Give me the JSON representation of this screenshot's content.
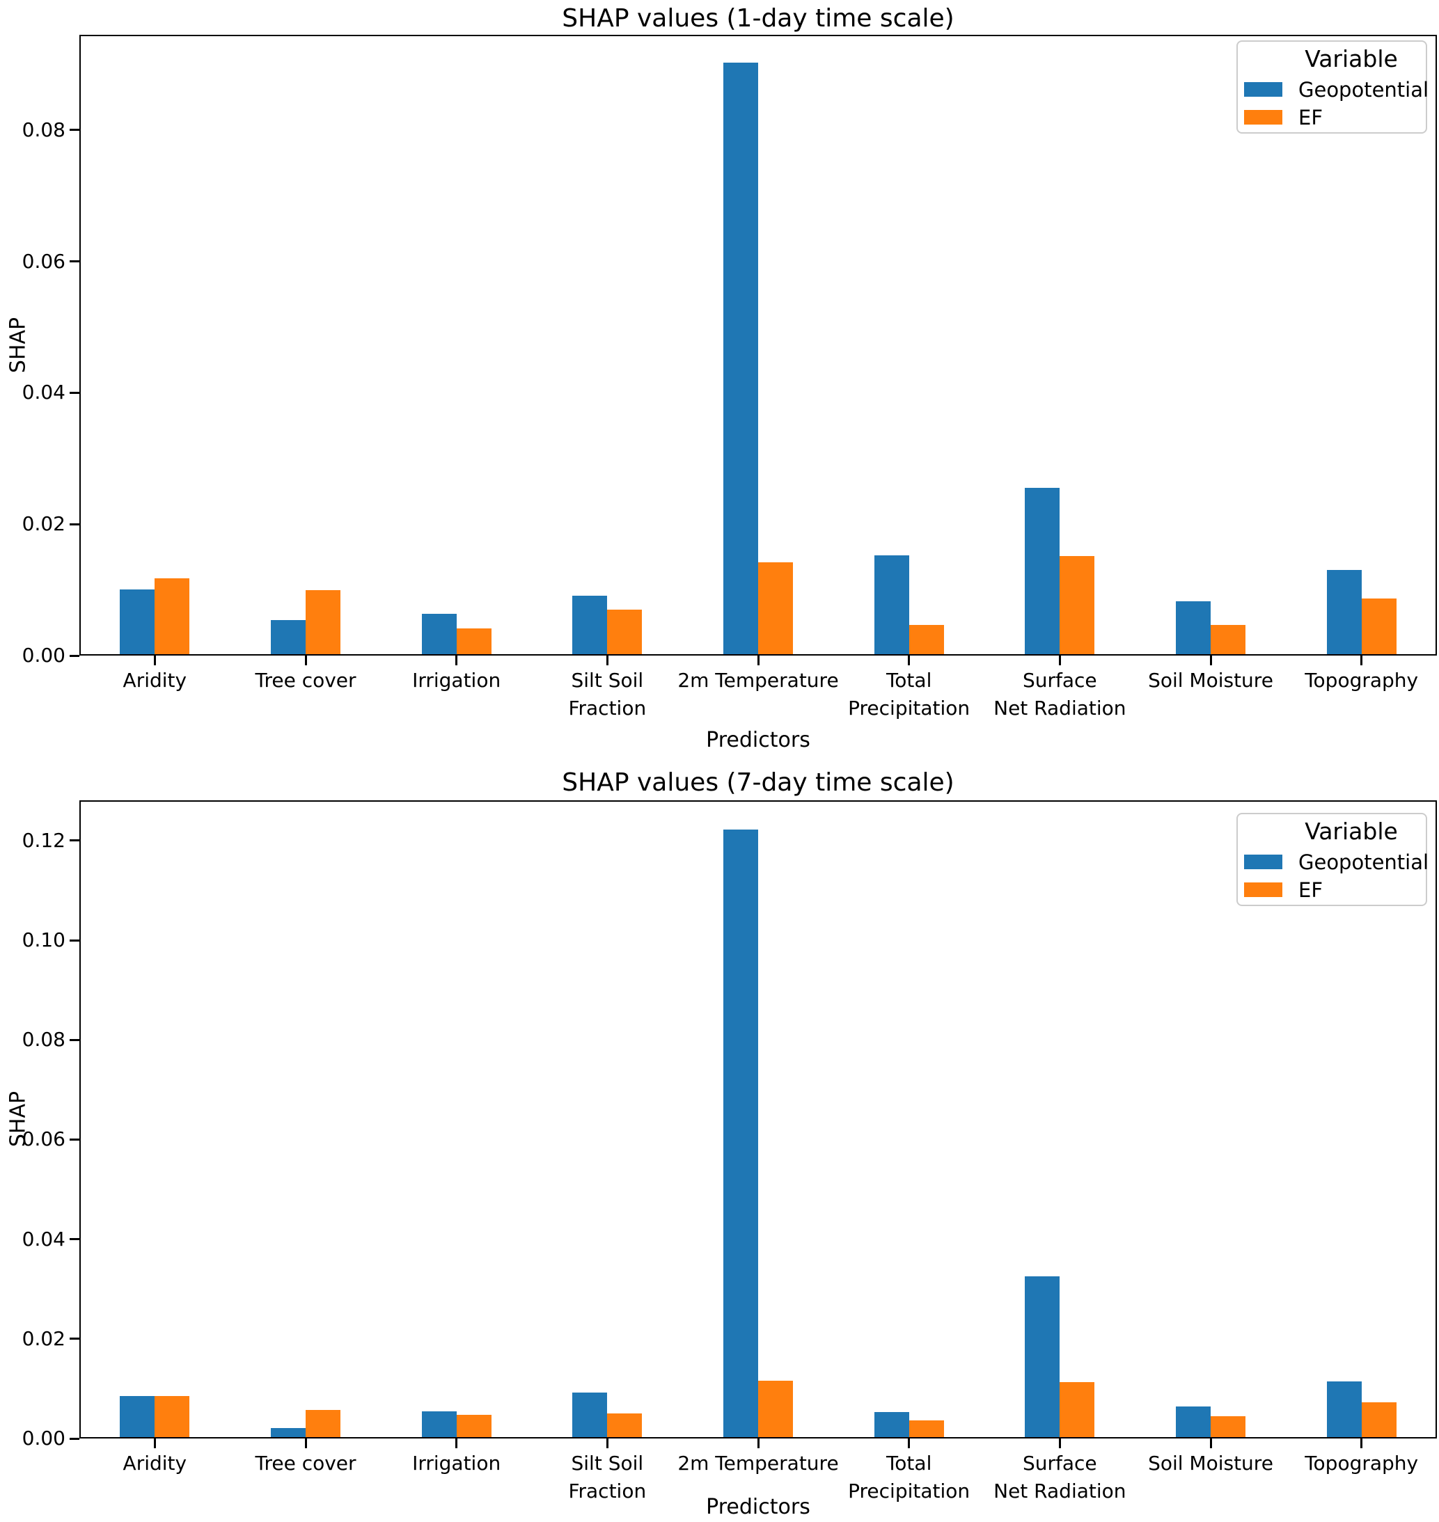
{
  "figure": {
    "background": "#ffffff",
    "text_color": "#000000",
    "spine_color": "#000000"
  },
  "chart_data": [
    {
      "type": "bar",
      "title": "SHAP values (1-day time scale)",
      "xlabel": "Predictors",
      "ylabel": "SHAP",
      "grid": false,
      "categories": [
        "Aridity",
        "Tree cover",
        "Irrigation",
        "Silt Soil\nFraction",
        "2m Temperature",
        "Total\nPrecipitation",
        "Surface\nNet Radiation",
        "Soil Moisture",
        "Topography"
      ],
      "series": [
        {
          "name": "Geopotential",
          "color": "#1f77b4",
          "values": [
            0.0098,
            0.0052,
            0.0061,
            0.0089,
            0.09,
            0.015,
            0.0253,
            0.008,
            0.0128
          ]
        },
        {
          "name": "EF",
          "color": "#ff7f0e",
          "values": [
            0.0115,
            0.0097,
            0.0039,
            0.0068,
            0.014,
            0.0044,
            0.0149,
            0.0045,
            0.0085
          ]
        }
      ],
      "ylim": [
        0,
        0.0945
      ],
      "yticks": {
        "values": [
          0,
          0.02,
          0.04,
          0.06,
          0.08
        ],
        "labels": [
          "0.00",
          "0.02",
          "0.04",
          "0.06",
          "0.08"
        ]
      },
      "legend": {
        "title": "Variable",
        "position": "upper right"
      }
    },
    {
      "type": "bar",
      "title": "SHAP values (7-day time scale)",
      "xlabel": "Predictors",
      "ylabel": "SHAP",
      "grid": false,
      "categories": [
        "Aridity",
        "Tree cover",
        "Irrigation",
        "Silt Soil\nFraction",
        "2m Temperature",
        "Total\nPrecipitation",
        "Surface\nNet Radiation",
        "Soil Moisture",
        "Topography"
      ],
      "series": [
        {
          "name": "Geopotential",
          "color": "#1f77b4",
          "values": [
            0.0082,
            0.0018,
            0.0052,
            0.0089,
            0.122,
            0.005,
            0.0322,
            0.0062,
            0.0112
          ]
        },
        {
          "name": "EF",
          "color": "#ff7f0e",
          "values": [
            0.0083,
            0.0055,
            0.0045,
            0.0047,
            0.0113,
            0.0033,
            0.011,
            0.0042,
            0.007
          ]
        }
      ],
      "ylim": [
        0,
        0.1281
      ],
      "yticks": {
        "values": [
          0,
          0.02,
          0.04,
          0.06,
          0.08,
          0.1,
          0.12
        ],
        "labels": [
          "0.00",
          "0.02",
          "0.04",
          "0.06",
          "0.08",
          "0.10",
          "0.12"
        ]
      },
      "legend": {
        "title": "Variable",
        "position": "upper right"
      }
    }
  ]
}
